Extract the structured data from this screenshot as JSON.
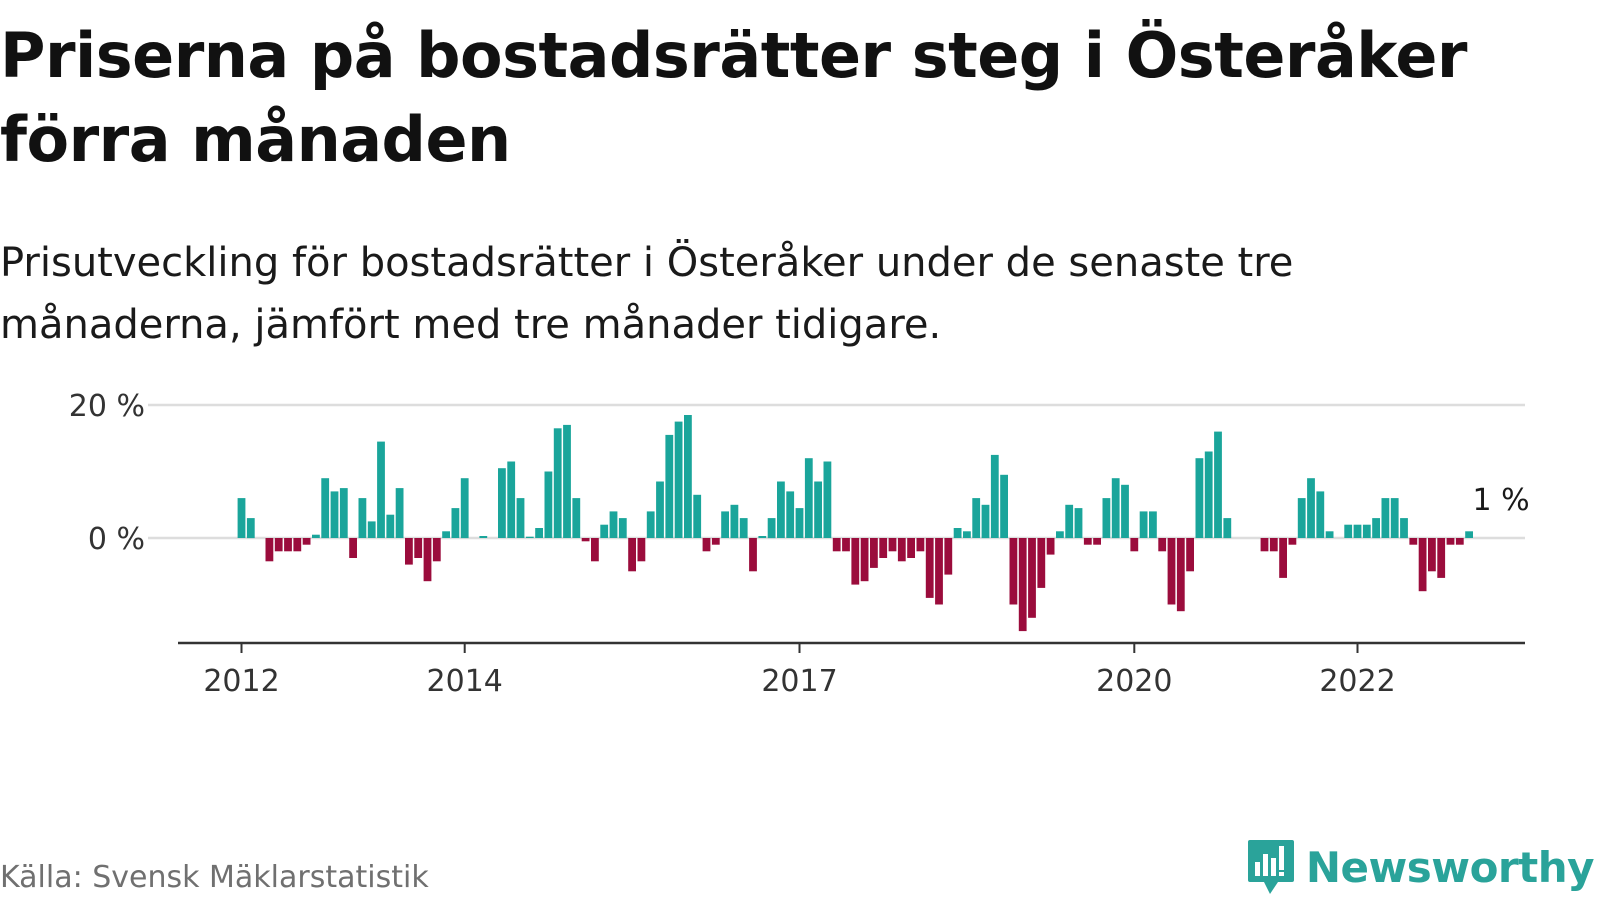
{
  "title": "Priserna på bostadsrätter steg i Österåker förra månaden",
  "subtitle": "Prisutveckling för bostadsrätter i Österåker under de senaste tre månaderna, jämfört med tre månader tidigare.",
  "source": "Källa: Svensk Mäklarstatistik",
  "brand": {
    "name": "Newsworthy",
    "icon": "bar-chart-speech-bubble-icon"
  },
  "colors": {
    "positive": "#1aa59b",
    "negative": "#9b0c3c",
    "axis": "#333333",
    "grid": "#dddddd"
  },
  "chart_data": {
    "type": "bar",
    "unit": "%",
    "start": "2012-01",
    "frequency": "monthly",
    "ylim": [
      -15,
      20
    ],
    "yticks": [
      {
        "value": 0,
        "label": "0 %"
      },
      {
        "value": 20,
        "label": "20 %"
      }
    ],
    "xticks": [
      {
        "index": 0,
        "label": "2012"
      },
      {
        "index": 24,
        "label": "2014"
      },
      {
        "index": 60,
        "label": "2017"
      },
      {
        "index": 96,
        "label": "2020"
      },
      {
        "index": 120,
        "label": "2022"
      }
    ],
    "last_value_label": "1 %",
    "grid": true,
    "values": [
      6,
      3,
      0,
      -3.5,
      -2,
      -2,
      -2,
      -1,
      0.5,
      9,
      7,
      7.5,
      -3,
      6,
      2.5,
      14.5,
      3.5,
      7.5,
      -4,
      -3,
      -6.5,
      -3.5,
      1,
      4.5,
      9,
      0,
      0.3,
      0,
      10.5,
      11.5,
      6,
      0.2,
      1.5,
      10,
      16.5,
      17,
      6,
      -0.5,
      -3.5,
      2,
      4,
      3,
      -5,
      -3.5,
      4,
      8.5,
      15.5,
      17.5,
      18.5,
      6.5,
      -2,
      -1,
      4,
      5,
      3,
      -5,
      0.3,
      3,
      8.5,
      7,
      4.5,
      12,
      8.5,
      11.5,
      -2,
      -2,
      -7,
      -6.5,
      -4.5,
      -3,
      -2,
      -3.5,
      -3,
      -2,
      -9,
      -10,
      -5.5,
      1.5,
      1,
      6,
      5,
      12.5,
      9.5,
      -10,
      -14,
      -12,
      -7.5,
      -2.5,
      1,
      5,
      4.5,
      -1,
      -1,
      6,
      9,
      8,
      -2,
      4,
      4,
      -2,
      -10,
      -11,
      -5,
      12,
      13,
      16,
      3,
      0,
      0,
      0,
      -2,
      -2,
      -6,
      -1,
      6,
      9,
      7,
      1,
      0,
      2,
      2,
      2,
      3,
      6,
      6,
      3,
      -1,
      -8,
      -5,
      -6,
      -1,
      -1,
      1
    ]
  }
}
